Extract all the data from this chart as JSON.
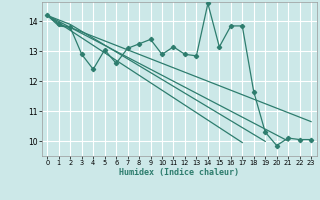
{
  "xlabel": "Humidex (Indice chaleur)",
  "ylabel": "",
  "xlim": [
    -0.5,
    23.5
  ],
  "ylim": [
    9.5,
    14.65
  ],
  "yticks": [
    10,
    11,
    12,
    13,
    14
  ],
  "xticks": [
    0,
    1,
    2,
    3,
    4,
    5,
    6,
    7,
    8,
    9,
    10,
    11,
    12,
    13,
    14,
    15,
    16,
    17,
    18,
    19,
    20,
    21,
    22,
    23
  ],
  "bg_color": "#cce8e8",
  "line_color": "#2e7d6e",
  "grid_color": "#ffffff",
  "series": {
    "zigzag": [
      14.2,
      13.9,
      13.8,
      12.9,
      12.4,
      13.05,
      12.6,
      13.1,
      13.25,
      13.4,
      12.9,
      13.15,
      12.9,
      12.85,
      14.6,
      13.15,
      13.85,
      13.85,
      11.65,
      10.3,
      9.85,
      10.1,
      10.05,
      10.05
    ],
    "line1": [
      14.2,
      13.85,
      13.8,
      13.65,
      13.5,
      13.35,
      13.2,
      13.05,
      12.9,
      12.75,
      12.6,
      12.45,
      12.3,
      12.15,
      12.0,
      11.85,
      11.7,
      11.55,
      11.4,
      11.25,
      11.1,
      10.95,
      10.8,
      10.65
    ],
    "line2": [
      14.2,
      14.05,
      13.9,
      13.67,
      13.44,
      13.21,
      12.98,
      12.75,
      12.52,
      12.29,
      12.06,
      11.83,
      11.6,
      11.37,
      11.14,
      10.91,
      10.68,
      10.45,
      10.22,
      9.99,
      null,
      null,
      null,
      null
    ],
    "line3": [
      14.2,
      14.0,
      13.8,
      13.6,
      13.4,
      13.2,
      13.0,
      12.8,
      12.6,
      12.4,
      12.2,
      12.0,
      11.8,
      11.6,
      11.4,
      11.2,
      11.0,
      10.8,
      10.6,
      10.4,
      10.2,
      10.0,
      null,
      null
    ],
    "line4": [
      14.2,
      13.95,
      13.7,
      13.45,
      13.2,
      12.95,
      12.7,
      12.45,
      12.2,
      11.95,
      11.7,
      11.45,
      11.2,
      10.95,
      10.7,
      10.45,
      10.2,
      9.95,
      null,
      null,
      null,
      null,
      null,
      null
    ]
  }
}
